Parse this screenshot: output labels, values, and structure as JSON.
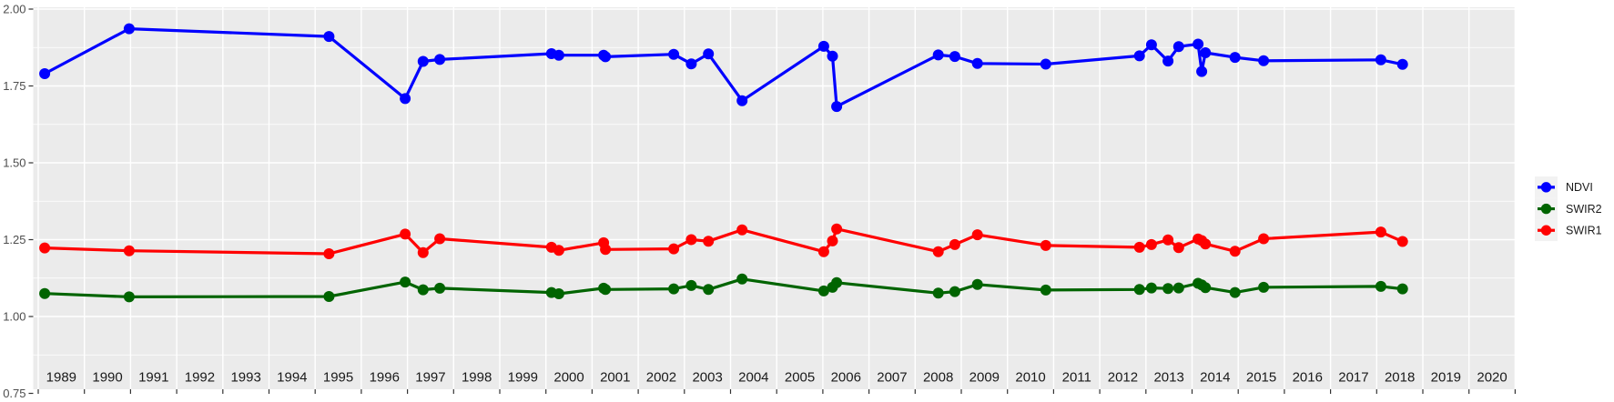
{
  "chart": {
    "title": "",
    "kind": "landsat-spectral-index-time-series"
  },
  "y_axis": {
    "ticks": [
      "2.00",
      "1.75",
      "1.50",
      "1.25",
      "1.00",
      "0.75"
    ],
    "values": [
      2.0,
      1.75,
      1.5,
      1.25,
      1.0,
      0.75
    ]
  },
  "x_axis": {
    "years": [
      "1989",
      "1990",
      "1991",
      "1992",
      "1993",
      "1994",
      "1995",
      "1996",
      "1997",
      "1998",
      "1999",
      "2000",
      "2001",
      "2002",
      "2003",
      "2004",
      "2005",
      "2006",
      "2007",
      "2008",
      "2009",
      "2010",
      "2011",
      "2012",
      "2013",
      "2014",
      "2015",
      "2016",
      "2017",
      "2018",
      "2019",
      "2020"
    ]
  },
  "legend": {
    "entries": [
      {
        "label": "NDVI",
        "color": "#0000FF"
      },
      {
        "label": "SWIR2",
        "color": "#006400"
      },
      {
        "label": "SWIR1",
        "color": "#FF0000"
      }
    ]
  },
  "colors": {
    "panel_bg": "#EBEBEB",
    "gridline": "#FFFFFF",
    "tick": "#333333",
    "y_label_text": "#4D4D4D",
    "x_label_text": "#1A1A1A",
    "legend_key_bg": "#F2F2F2",
    "legend_text": "#1A1A1A",
    "ndvi": "#0000FF",
    "swir2": "#006400",
    "swir1": "#FF0000"
  },
  "chart_data": {
    "type": "line",
    "x": [
      1988.64,
      1990.47,
      1994.8,
      1996.45,
      1996.84,
      1997.2,
      1999.62,
      1999.78,
      2000.75,
      2000.79,
      2002.27,
      2002.65,
      2003.02,
      2003.75,
      2005.52,
      2005.71,
      2005.8,
      2008.0,
      2008.36,
      2008.85,
      2010.33,
      2012.36,
      2012.62,
      2012.98,
      2013.21,
      2013.63,
      2013.71,
      2013.79,
      2014.43,
      2015.05,
      2017.59,
      2018.06
    ],
    "series": [
      {
        "name": "NDVI",
        "color": "#0000FF",
        "values": [
          1.79,
          1.936,
          1.911,
          1.709,
          1.83,
          1.836,
          1.855,
          1.85,
          1.85,
          1.845,
          1.853,
          1.822,
          1.854,
          1.702,
          1.879,
          1.847,
          1.683,
          1.851,
          1.846,
          1.823,
          1.821,
          1.848,
          1.884,
          1.831,
          1.878,
          1.886,
          1.797,
          1.858,
          1.843,
          1.832,
          1.835,
          1.82
        ]
      },
      {
        "name": "SWIR2",
        "color": "#006400",
        "values": [
          1.075,
          1.064,
          1.065,
          1.112,
          1.087,
          1.092,
          1.078,
          1.074,
          1.092,
          1.088,
          1.09,
          1.101,
          1.088,
          1.122,
          1.083,
          1.095,
          1.11,
          1.076,
          1.081,
          1.104,
          1.086,
          1.088,
          1.093,
          1.091,
          1.093,
          1.108,
          1.103,
          1.094,
          1.078,
          1.095,
          1.098,
          1.09
        ]
      },
      {
        "name": "SWIR1",
        "color": "#FF0000",
        "values": [
          1.223,
          1.214,
          1.204,
          1.268,
          1.208,
          1.253,
          1.225,
          1.215,
          1.24,
          1.218,
          1.22,
          1.25,
          1.245,
          1.282,
          1.211,
          1.246,
          1.285,
          1.211,
          1.234,
          1.266,
          1.231,
          1.225,
          1.234,
          1.249,
          1.224,
          1.252,
          1.247,
          1.236,
          1.212,
          1.253,
          1.275,
          1.244
        ]
      }
    ],
    "title": "",
    "xlabel": "",
    "ylabel": "",
    "xlim": [
      1988.38,
      2020.55
    ],
    "ylim": [
      0.75,
      2.0
    ],
    "y_major_gridlines": [
      2.0,
      1.75,
      1.5,
      1.25,
      1.0,
      0.75
    ],
    "y_minor_gridlines": [
      1.875,
      1.625,
      1.375,
      1.125,
      0.875
    ],
    "x_gridline_years": [
      1988.5,
      2020.5
    ],
    "grid": true,
    "legend_position": "right"
  }
}
